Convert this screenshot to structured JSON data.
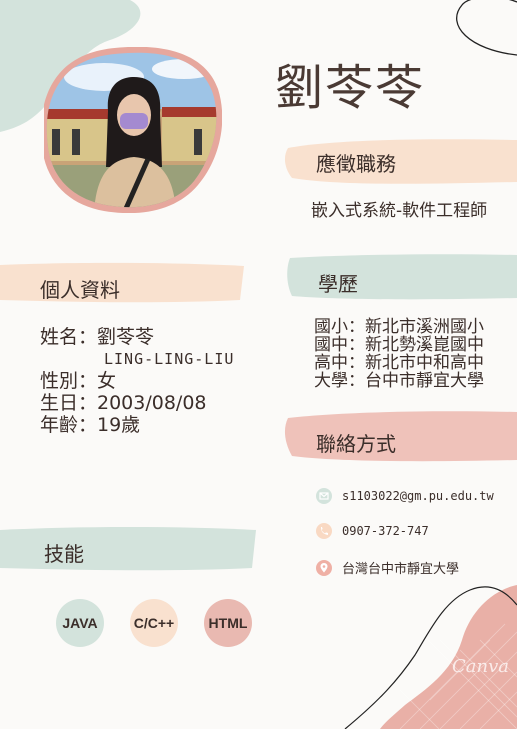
{
  "profile": {
    "name": "劉苓苓"
  },
  "sections": {
    "job": {
      "title": "應徵職務",
      "value": "嵌入式系統-軟件工程師"
    },
    "personal": {
      "title": "個人資料",
      "lines": [
        "姓名：劉苓苓",
        "LING-LING-LIU",
        "性別：女",
        "生日：2003/08/08",
        "年齡：19歲"
      ]
    },
    "education": {
      "title": "學歷",
      "lines": [
        "國小：新北市溪洲國小",
        "國中：新北勢溪崑國中",
        "高中：新北市中和高中",
        "大學：台中市靜宜大學"
      ]
    },
    "contact": {
      "title": "聯絡方式",
      "items": [
        {
          "icon": "mail-icon",
          "text": "s1103022@gm.pu.edu.tw"
        },
        {
          "icon": "phone-icon",
          "text": "0907-372-747"
        },
        {
          "icon": "location-pin-icon",
          "text": "台灣台中市靜宜大學"
        }
      ]
    },
    "skills": {
      "title": "技能",
      "items": [
        "JAVA",
        "C/C++",
        "HTML"
      ]
    }
  },
  "watermark": "Canva",
  "colors": {
    "sage": "#d3e3dc",
    "peach": "#f9e1cf",
    "rose": "#e9b9b1",
    "frame": "#e6a79d",
    "text": "#3b2e2a"
  }
}
